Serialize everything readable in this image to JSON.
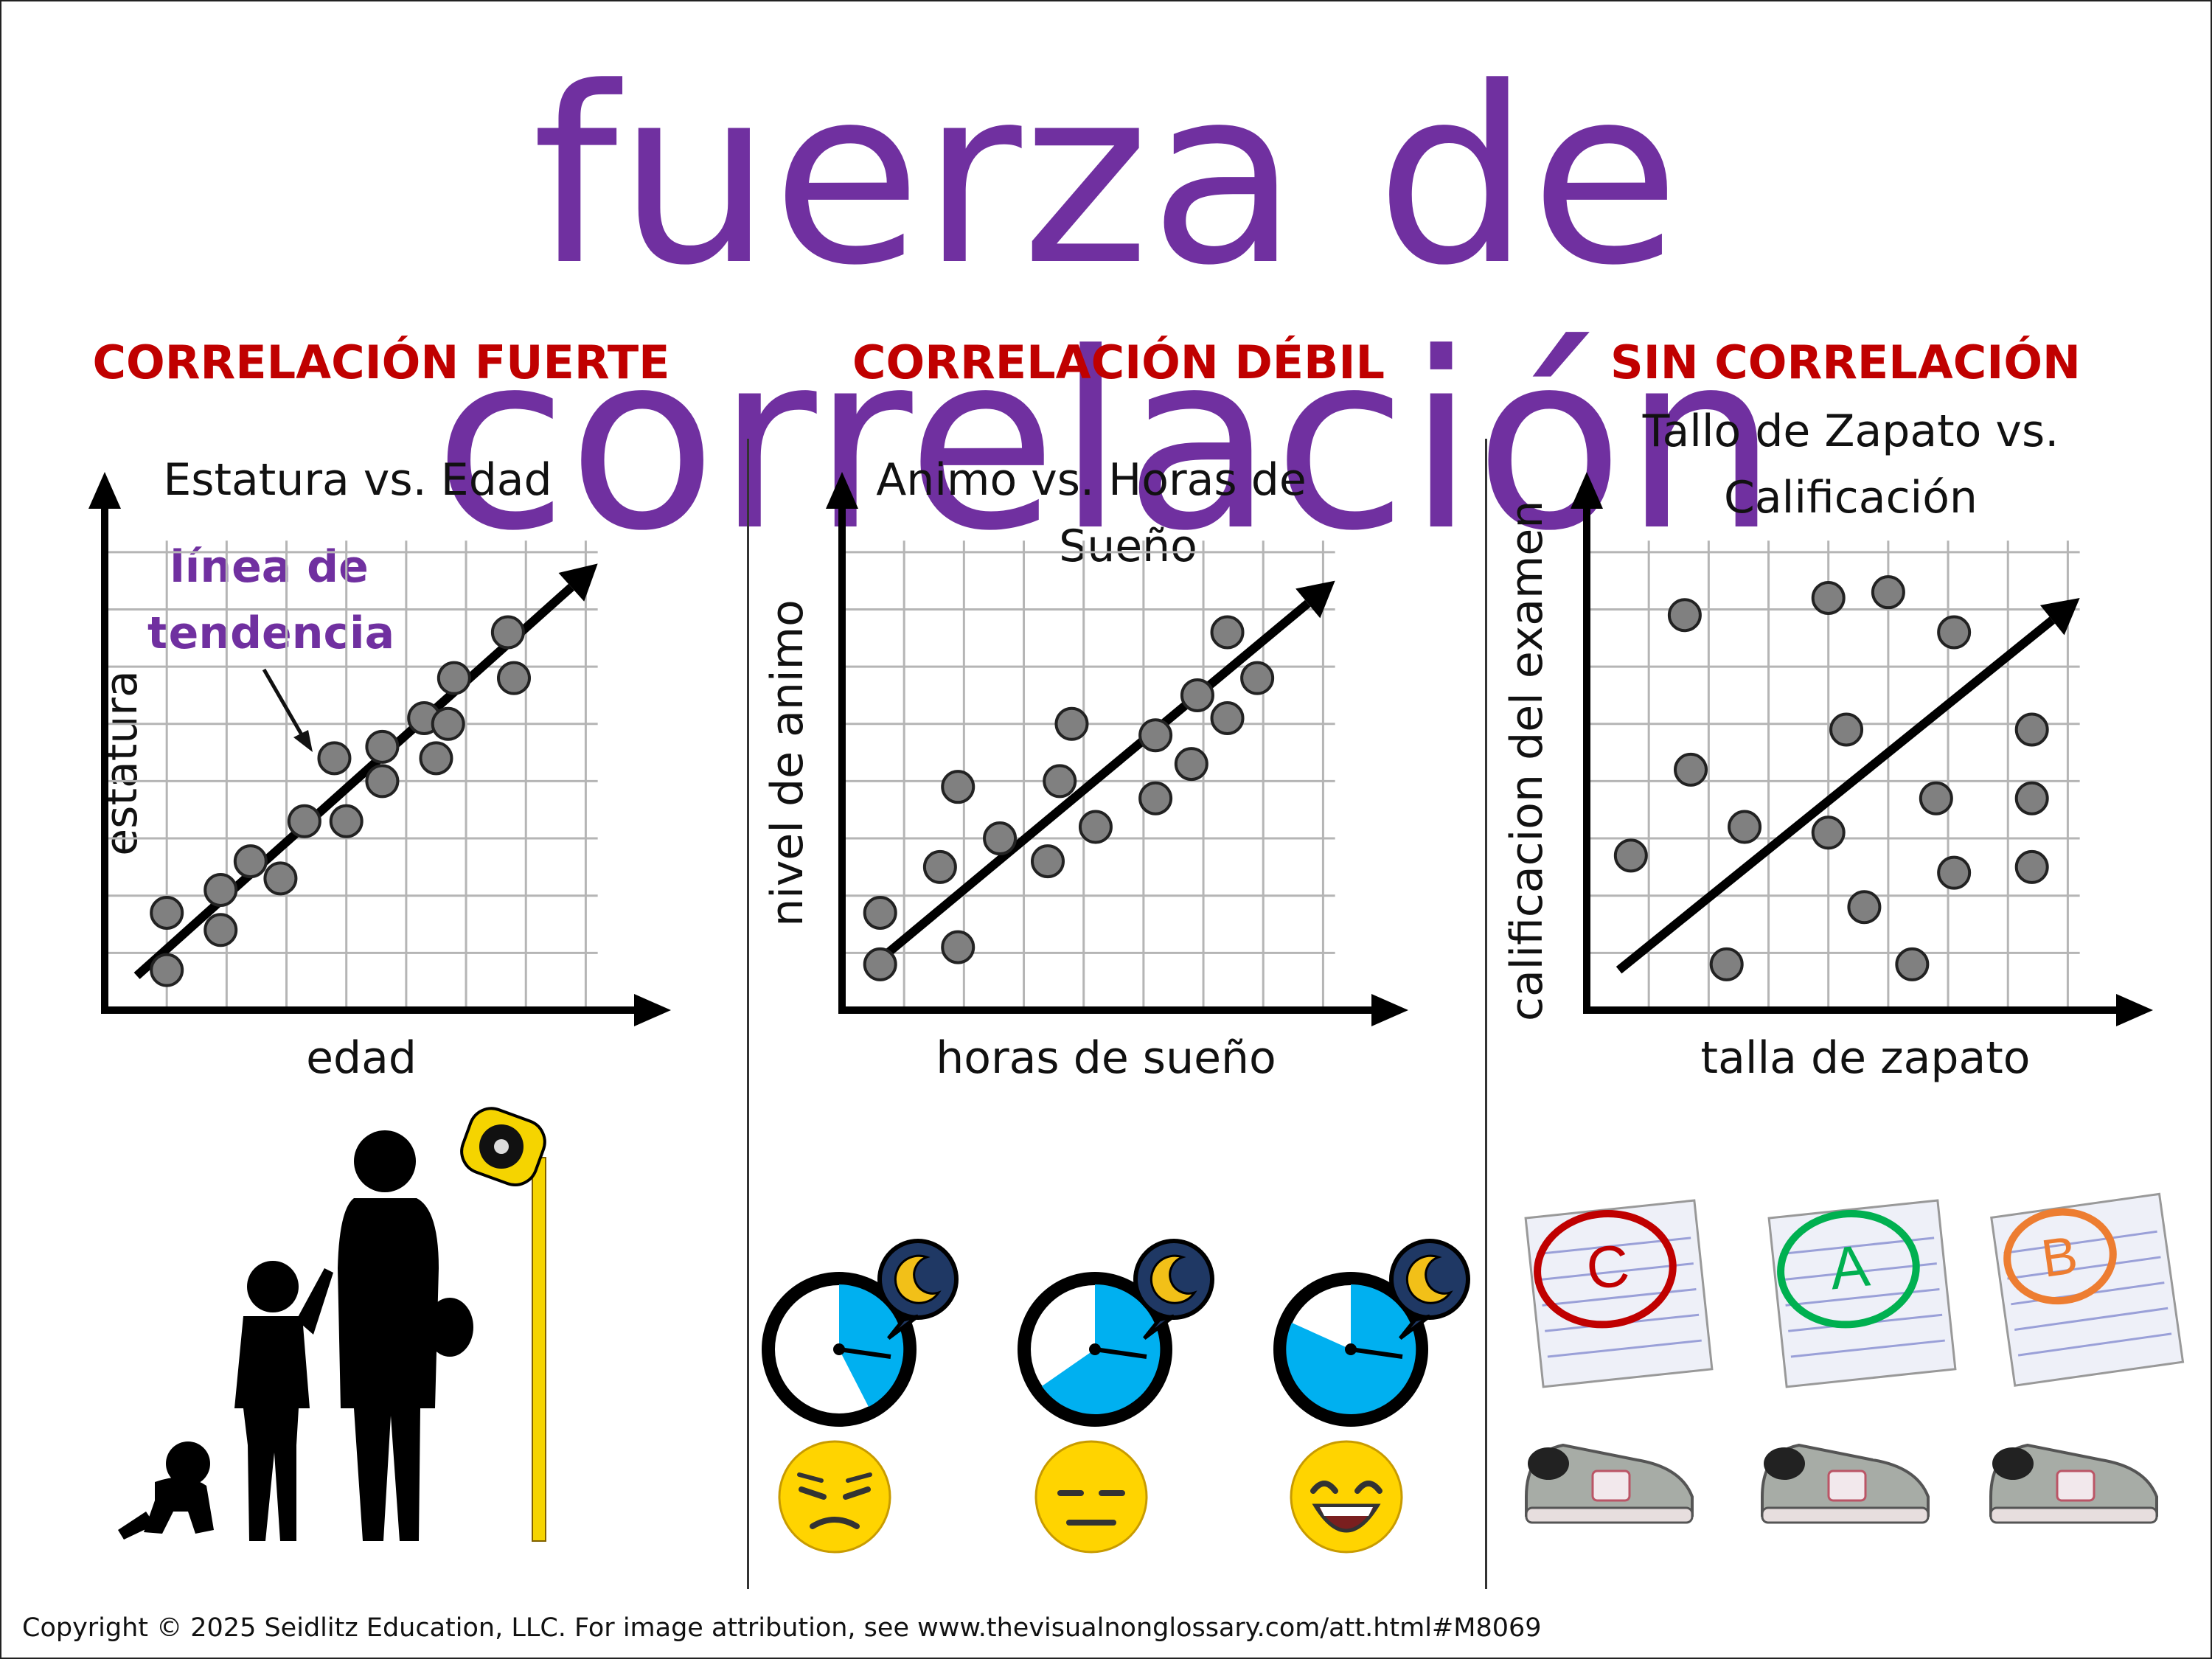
{
  "title": "fuerza de correlación",
  "panels": [
    {
      "heading": "CORRELACIÓN FUERTE",
      "chart_title": "Estatura vs. Edad",
      "xlabel": "edad",
      "ylabel": "estatura",
      "annotation_line1": "línea de",
      "annotation_line2": "tendencia"
    },
    {
      "heading": "CORRELACIÓN DÉBIL",
      "chart_title_line1": "Animo vs. Horas de",
      "chart_title_line2": "Sueño",
      "xlabel": "horas de sueño",
      "ylabel": "nivel de animo"
    },
    {
      "heading": "SIN CORRELACIÓN",
      "chart_title_line1": "Tallo de Zapato vs.",
      "chart_title_line2": "Calificación",
      "xlabel": "talla de zapato",
      "ylabel": "calificacion del examen"
    }
  ],
  "grades": [
    "C",
    "A",
    "B"
  ],
  "colors": {
    "title": "#7030a0",
    "heading": "#c00000",
    "dot": "#808080",
    "grade_c": "#c00000",
    "grade_a": "#00b050",
    "grade_b": "#ed7d31",
    "clock_fill": "#00b0f0",
    "moon_bubble": "#1f3864",
    "moon": "#f2c018",
    "emoji": "#ffd400"
  },
  "icons": [
    "baby-silhouette-icon",
    "child-silhouette-icon",
    "teen-silhouette-icon",
    "tape-measure-icon",
    "clock-icon",
    "moon-bubble-icon",
    "sad-face-icon",
    "neutral-face-icon",
    "happy-face-icon",
    "graded-paper-icon",
    "sneakers-icon"
  ],
  "footer": "Copyright © 2025 Seidlitz Education, LLC.  For image attribution, see www.thevisualnonglossary.com/att.html#M8069",
  "chart_data": [
    {
      "type": "scatter",
      "title": "Estatura vs. Edad",
      "xlabel": "edad",
      "ylabel": "estatura",
      "xlim": [
        0,
        8.5
      ],
      "ylim": [
        0,
        8.5
      ],
      "grid": true,
      "trendline": [
        [
          0.5,
          0.6
        ],
        [
          8.2,
          7.8
        ]
      ],
      "points": [
        [
          1.0,
          1.7
        ],
        [
          1.0,
          0.7
        ],
        [
          1.9,
          2.1
        ],
        [
          1.9,
          1.4
        ],
        [
          2.4,
          2.6
        ],
        [
          2.9,
          2.3
        ],
        [
          3.3,
          3.3
        ],
        [
          3.8,
          4.4
        ],
        [
          4.0,
          3.3
        ],
        [
          4.6,
          4.6
        ],
        [
          4.6,
          4.0
        ],
        [
          5.3,
          5.1
        ],
        [
          5.5,
          4.4
        ],
        [
          5.7,
          5.0
        ],
        [
          5.8,
          5.8
        ],
        [
          6.7,
          6.6
        ],
        [
          6.8,
          5.8
        ]
      ]
    },
    {
      "type": "scatter",
      "title": "Animo vs. Horas de Sueño",
      "xlabel": "horas de sueño",
      "ylabel": "nivel de animo",
      "xlim": [
        0,
        8.5
      ],
      "ylim": [
        0,
        8.5
      ],
      "grid": true,
      "trendline": [
        [
          0.5,
          0.8
        ],
        [
          8.2,
          7.5
        ]
      ],
      "points": [
        [
          0.6,
          1.7
        ],
        [
          0.6,
          0.8
        ],
        [
          1.6,
          2.5
        ],
        [
          1.9,
          3.9
        ],
        [
          1.9,
          1.1
        ],
        [
          2.6,
          3.0
        ],
        [
          3.4,
          2.6
        ],
        [
          3.6,
          4.0
        ],
        [
          3.8,
          5.0
        ],
        [
          4.2,
          3.2
        ],
        [
          5.2,
          4.8
        ],
        [
          5.2,
          3.7
        ],
        [
          5.8,
          4.3
        ],
        [
          5.9,
          5.5
        ],
        [
          6.4,
          5.1
        ],
        [
          6.4,
          6.6
        ],
        [
          6.9,
          5.8
        ]
      ]
    },
    {
      "type": "scatter",
      "title": "Tallo de Zapato vs. Calificación",
      "xlabel": "talla de zapato",
      "ylabel": "calificacion del examen",
      "xlim": [
        0,
        8.5
      ],
      "ylim": [
        0,
        8.5
      ],
      "grid": true,
      "trendline": [
        [
          0.5,
          0.7
        ],
        [
          8.2,
          7.2
        ]
      ],
      "points": [
        [
          0.7,
          2.7
        ],
        [
          1.6,
          6.9
        ],
        [
          1.7,
          4.2
        ],
        [
          2.3,
          0.8
        ],
        [
          2.6,
          3.2
        ],
        [
          4.0,
          7.2
        ],
        [
          4.0,
          3.1
        ],
        [
          4.3,
          4.9
        ],
        [
          4.6,
          1.8
        ],
        [
          5.0,
          7.3
        ],
        [
          5.4,
          0.8
        ],
        [
          5.8,
          3.7
        ],
        [
          6.1,
          6.6
        ],
        [
          6.1,
          2.4
        ],
        [
          7.4,
          4.9
        ],
        [
          7.4,
          3.7
        ],
        [
          7.4,
          2.5
        ]
      ]
    }
  ]
}
